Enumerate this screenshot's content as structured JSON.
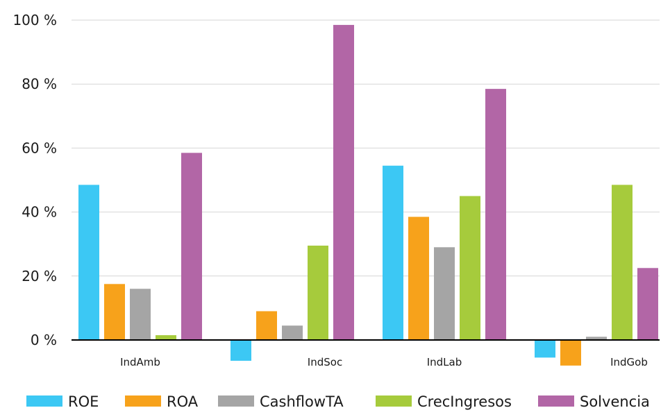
{
  "chart_data": {
    "type": "bar",
    "categories": [
      "IndAmb",
      "IndSoc",
      "IndLab",
      "IndGob"
    ],
    "series": [
      {
        "name": "ROE",
        "color": "#3cc8f4",
        "values": [
          48.5,
          -6.5,
          54.5,
          -5.5
        ]
      },
      {
        "name": "ROA",
        "color": "#f7a21b",
        "values": [
          17.5,
          9.0,
          38.5,
          -8.0
        ]
      },
      {
        "name": "CashflowTA",
        "color": "#a5a5a5",
        "values": [
          16.0,
          4.5,
          29.0,
          1.0
        ]
      },
      {
        "name": "CrecIngresos",
        "color": "#a6cb3c",
        "values": [
          1.5,
          29.5,
          45.0,
          48.5
        ]
      },
      {
        "name": "Solvencia",
        "color": "#b266a6",
        "values": [
          58.5,
          98.5,
          78.5,
          22.5
        ]
      }
    ],
    "yticks": [
      "0 %",
      "20 %",
      "40 %",
      "60 %",
      "80 %",
      "100 %"
    ],
    "ylim": [
      -10,
      100
    ],
    "grid": true,
    "legend_position": "bottom"
  }
}
